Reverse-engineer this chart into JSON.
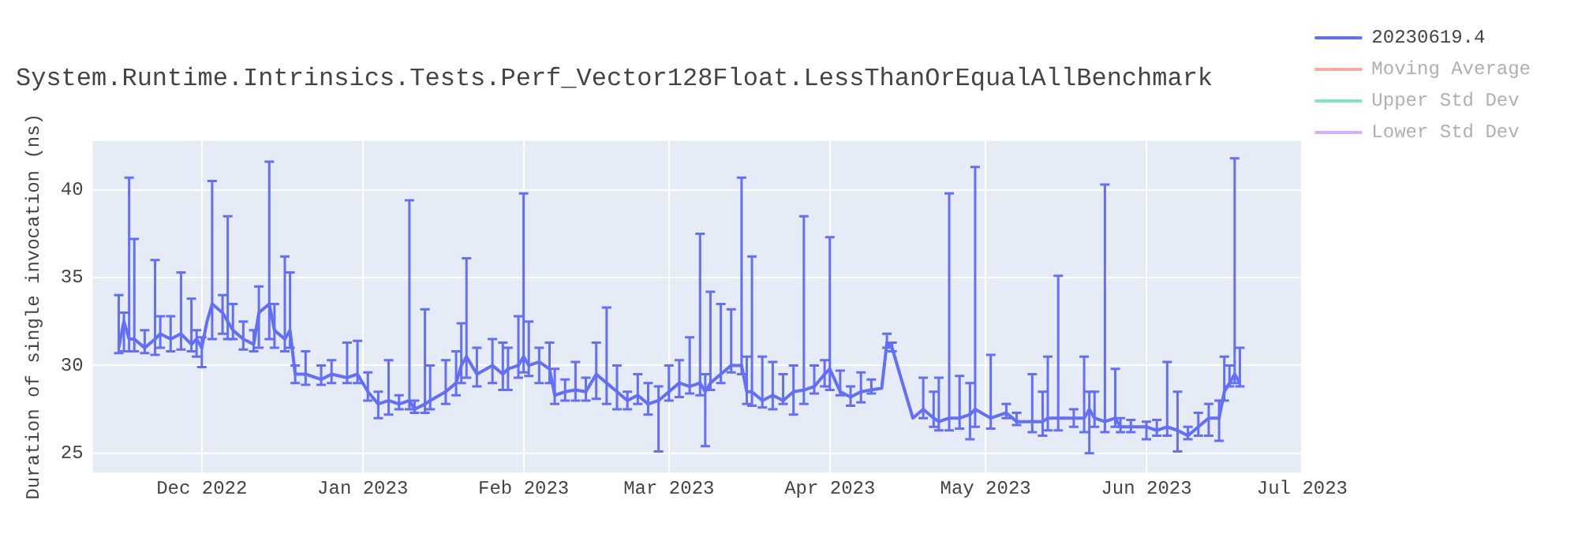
{
  "chart_data": {
    "type": "line",
    "title": "System.Runtime.Intrinsics.Tests.Perf_Vector128Float.LessThanOrEqualAllBenchmark",
    "ylabel": "Duration of single invocation (ns)",
    "x": [
      "2022-11-15",
      "2022-11-16",
      "2022-11-17",
      "2022-11-18",
      "2022-11-20",
      "2022-11-22",
      "2022-11-23",
      "2022-11-25",
      "2022-11-27",
      "2022-11-29",
      "2022-11-30",
      "2022-12-01",
      "2022-12-02",
      "2022-12-03",
      "2022-12-05",
      "2022-12-06",
      "2022-12-07",
      "2022-12-09",
      "2022-12-11",
      "2022-12-12",
      "2022-12-14",
      "2022-12-15",
      "2022-12-17",
      "2022-12-18",
      "2022-12-19",
      "2022-12-21",
      "2022-12-24",
      "2022-12-26",
      "2022-12-29",
      "2022-12-31",
      "2023-01-02",
      "2023-01-04",
      "2023-01-06",
      "2023-01-08",
      "2023-01-10",
      "2023-01-11",
      "2023-01-13",
      "2023-01-14",
      "2023-01-17",
      "2023-01-19",
      "2023-01-20",
      "2023-01-21",
      "2023-01-23",
      "2023-01-26",
      "2023-01-28",
      "2023-01-29",
      "2023-01-31",
      "2023-02-01",
      "2023-02-02",
      "2023-02-04",
      "2023-02-06",
      "2023-02-07",
      "2023-02-09",
      "2023-02-11",
      "2023-02-13",
      "2023-02-15",
      "2023-02-17",
      "2023-02-19",
      "2023-02-21",
      "2023-02-23",
      "2023-02-25",
      "2023-02-27",
      "2023-03-01",
      "2023-03-03",
      "2023-03-05",
      "2023-03-07",
      "2023-03-08",
      "2023-03-09",
      "2023-03-11",
      "2023-03-13",
      "2023-03-15",
      "2023-03-16",
      "2023-03-17",
      "2023-03-19",
      "2023-03-21",
      "2023-03-23",
      "2023-03-25",
      "2023-03-27",
      "2023-03-29",
      "2023-03-31",
      "2023-04-01",
      "2023-04-03",
      "2023-04-05",
      "2023-04-07",
      "2023-04-09",
      "2023-04-11",
      "2023-04-12",
      "2023-04-13",
      "2023-04-17",
      "2023-04-19",
      "2023-04-21",
      "2023-04-22",
      "2023-04-24",
      "2023-04-26",
      "2023-04-28",
      "2023-04-29",
      "2023-05-02",
      "2023-05-05",
      "2023-05-07",
      "2023-05-10",
      "2023-05-12",
      "2023-05-13",
      "2023-05-15",
      "2023-05-18",
      "2023-05-20",
      "2023-05-21",
      "2023-05-22",
      "2023-05-24",
      "2023-05-26",
      "2023-05-27",
      "2023-05-29",
      "2023-06-01",
      "2023-06-03",
      "2023-06-05",
      "2023-06-07",
      "2023-06-09",
      "2023-06-11",
      "2023-06-13",
      "2023-06-15",
      "2023-06-16",
      "2023-06-17",
      "2023-06-18",
      "2023-06-19"
    ],
    "series": [
      {
        "name": "20230619.4",
        "color": "#636efa",
        "values": [
          31.0,
          32.5,
          31.5,
          31.5,
          31.0,
          31.5,
          31.8,
          31.5,
          31.8,
          31.2,
          31.5,
          31.0,
          32.5,
          33.5,
          33.0,
          32.5,
          32.0,
          31.5,
          31.2,
          33.0,
          33.5,
          32.0,
          31.5,
          32.0,
          29.5,
          29.5,
          29.2,
          29.5,
          29.3,
          29.5,
          28.5,
          27.8,
          28.0,
          27.8,
          28.0,
          27.5,
          27.8,
          28.0,
          28.5,
          29.0,
          30.0,
          30.5,
          29.5,
          30.0,
          29.5,
          29.8,
          30.0,
          30.5,
          30.0,
          30.2,
          29.8,
          28.3,
          28.5,
          28.6,
          28.5,
          29.5,
          29.0,
          28.5,
          28.0,
          28.3,
          27.8,
          28.0,
          28.5,
          29.0,
          28.8,
          29.0,
          28.5,
          29.0,
          29.5,
          30.0,
          30.0,
          28.5,
          28.5,
          28.0,
          28.3,
          28.0,
          28.5,
          28.6,
          28.8,
          29.5,
          29.8,
          28.5,
          28.2,
          28.5,
          28.6,
          28.7,
          31.3,
          31.0,
          27.0,
          27.5,
          27.0,
          26.8,
          27.0,
          27.0,
          27.2,
          27.5,
          27.0,
          27.3,
          26.8,
          26.8,
          26.8,
          27.0,
          27.0,
          27.0,
          27.0,
          27.5,
          27.0,
          26.8,
          27.0,
          26.5,
          26.5,
          26.5,
          26.3,
          26.5,
          26.3,
          26.0,
          26.5,
          27.0,
          27.0,
          28.5,
          29.0,
          29.5,
          29.0
        ],
        "errors": [
          [
            30.7,
            34.0
          ],
          [
            30.8,
            33.0
          ],
          [
            30.8,
            40.7
          ],
          [
            30.8,
            37.2
          ],
          [
            30.7,
            32.0
          ],
          [
            30.6,
            36.0
          ],
          [
            31.0,
            32.8
          ],
          [
            30.8,
            32.8
          ],
          [
            30.9,
            35.3
          ],
          [
            30.8,
            33.8
          ],
          [
            30.5,
            32.0
          ],
          [
            29.9,
            31.6
          ],
          null,
          [
            31.5,
            40.5
          ],
          [
            31.8,
            34.0
          ],
          [
            31.5,
            38.5
          ],
          [
            31.5,
            33.5
          ],
          [
            30.9,
            32.5
          ],
          [
            30.8,
            32.0
          ],
          [
            31.0,
            34.5
          ],
          [
            31.5,
            41.6
          ],
          [
            31.0,
            33.5
          ],
          [
            30.8,
            36.2
          ],
          [
            31.0,
            35.3
          ],
          [
            29.0,
            30.0
          ],
          [
            28.9,
            30.8
          ],
          [
            28.9,
            30.0
          ],
          [
            29.0,
            30.3
          ],
          [
            29.0,
            31.3
          ],
          [
            29.0,
            31.4
          ],
          [
            28.0,
            29.6
          ],
          [
            27.0,
            28.5
          ],
          [
            27.2,
            30.3
          ],
          [
            27.5,
            28.3
          ],
          [
            27.5,
            39.4
          ],
          [
            27.3,
            28.0
          ],
          [
            27.3,
            33.2
          ],
          [
            27.5,
            30.0
          ],
          [
            27.8,
            30.3
          ],
          [
            28.3,
            30.8
          ],
          [
            29.0,
            32.4
          ],
          [
            29.3,
            36.1
          ],
          [
            28.8,
            31.0
          ],
          [
            29.0,
            31.5
          ],
          [
            28.6,
            31.3
          ],
          [
            28.6,
            31.0
          ],
          [
            29.3,
            32.8
          ],
          [
            29.6,
            39.8
          ],
          [
            29.4,
            32.5
          ],
          [
            29.0,
            31.0
          ],
          [
            29.0,
            31.3
          ],
          [
            27.8,
            29.8
          ],
          [
            28.0,
            29.2
          ],
          [
            28.0,
            30.2
          ],
          [
            28.0,
            29.3
          ],
          [
            28.1,
            31.3
          ],
          [
            27.8,
            33.3
          ],
          [
            27.5,
            30.0
          ],
          [
            27.5,
            28.5
          ],
          [
            27.8,
            29.5
          ],
          [
            27.2,
            29.0
          ],
          [
            25.1,
            28.8
          ],
          [
            28.0,
            30.0
          ],
          [
            28.2,
            30.3
          ],
          [
            28.4,
            31.6
          ],
          [
            28.3,
            37.5
          ],
          [
            25.4,
            29.5
          ],
          [
            28.6,
            34.2
          ],
          [
            29.0,
            33.5
          ],
          [
            29.6,
            33.2
          ],
          [
            29.5,
            40.7
          ],
          [
            27.8,
            30.5
          ],
          [
            27.7,
            36.2
          ],
          [
            27.6,
            30.5
          ],
          [
            27.5,
            30.2
          ],
          [
            27.8,
            29.5
          ],
          [
            27.2,
            30.0
          ],
          [
            27.8,
            38.5
          ],
          [
            28.4,
            30.0
          ],
          [
            28.8,
            30.3
          ],
          [
            28.6,
            37.3
          ],
          [
            28.3,
            29.7
          ],
          [
            27.7,
            28.8
          ],
          [
            27.9,
            29.6
          ],
          [
            28.4,
            29.2
          ],
          null,
          [
            31.0,
            31.8
          ],
          [
            30.8,
            31.3
          ],
          null,
          [
            27.0,
            29.3
          ],
          [
            26.5,
            28.5
          ],
          [
            26.3,
            29.3
          ],
          [
            26.3,
            39.8
          ],
          [
            26.4,
            29.4
          ],
          [
            25.8,
            29.0
          ],
          [
            26.5,
            41.3
          ],
          [
            26.4,
            30.6
          ],
          [
            27.0,
            27.8
          ],
          [
            26.6,
            27.3
          ],
          [
            26.2,
            29.5
          ],
          [
            26.0,
            28.5
          ],
          [
            26.3,
            30.5
          ],
          [
            26.3,
            35.1
          ],
          [
            26.5,
            27.5
          ],
          [
            26.2,
            30.5
          ],
          [
            25.0,
            28.5
          ],
          [
            26.5,
            28.5
          ],
          [
            26.2,
            40.3
          ],
          [
            26.5,
            29.8
          ],
          [
            26.2,
            27.0
          ],
          [
            26.2,
            26.9
          ],
          [
            25.8,
            26.8
          ],
          [
            26.0,
            26.9
          ],
          [
            26.0,
            30.2
          ],
          [
            25.1,
            28.5
          ],
          [
            25.8,
            26.5
          ],
          [
            26.0,
            27.3
          ],
          [
            26.0,
            27.8
          ],
          [
            25.7,
            28.0
          ],
          [
            28.0,
            30.5
          ],
          [
            28.8,
            30.0
          ],
          [
            29.0,
            41.8
          ],
          [
            28.8,
            31.0
          ]
        ]
      },
      {
        "name": "Moving Average",
        "color": "#ef553b",
        "values": [
          null,
          null,
          null,
          null,
          null,
          null,
          null,
          null,
          null,
          null,
          null,
          null,
          null,
          null,
          null,
          null,
          null,
          null,
          null,
          null,
          null,
          null,
          null,
          null,
          null,
          null,
          null,
          null,
          null,
          null,
          null,
          null,
          null,
          null,
          null,
          null,
          null,
          null,
          null,
          null,
          null,
          null,
          null,
          null,
          null,
          null,
          null,
          null,
          null,
          null,
          null,
          null,
          null,
          null,
          null,
          null,
          null,
          null,
          null,
          null,
          null,
          null,
          null,
          null,
          null,
          null,
          null,
          null,
          null,
          null,
          null,
          null,
          null,
          null,
          null,
          null,
          null,
          null,
          null,
          null,
          null,
          null,
          null,
          null,
          null,
          null,
          null,
          null,
          null,
          null,
          null,
          null,
          null,
          null,
          null,
          null,
          null,
          null,
          null,
          null,
          null,
          null,
          null,
          null,
          null,
          null,
          null,
          null,
          null,
          null,
          null,
          null,
          null,
          null,
          null,
          null,
          null,
          null,
          null,
          null,
          null,
          null,
          null
        ]
      },
      {
        "name": "Upper Std Dev",
        "color": "#00cc96",
        "values": [
          null,
          null,
          null,
          null,
          null,
          null,
          null,
          null,
          null,
          null,
          null,
          null,
          null,
          null,
          null,
          null,
          null,
          null,
          null,
          null,
          null,
          null,
          null,
          null,
          null,
          null,
          null,
          null,
          null,
          null,
          null,
          null,
          null,
          null,
          null,
          null,
          null,
          null,
          null,
          null,
          null,
          null,
          null,
          null,
          null,
          null,
          null,
          null,
          null,
          null,
          null,
          null,
          null,
          null,
          null,
          null,
          null,
          null,
          null,
          null,
          null,
          null,
          null,
          null,
          null,
          null,
          null,
          null,
          null,
          null,
          null,
          null,
          null,
          null,
          null,
          null,
          null,
          null,
          null,
          null,
          null,
          null,
          null,
          null,
          null,
          null,
          null,
          null,
          null,
          null,
          null,
          null,
          null,
          null,
          null,
          null,
          null,
          null,
          null,
          null,
          null,
          null,
          null,
          null,
          null,
          null,
          null,
          null,
          null,
          null,
          null,
          null,
          null,
          null,
          null,
          null,
          null,
          null,
          null,
          null,
          null,
          null,
          null
        ]
      },
      {
        "name": "Lower Std Dev",
        "color": "#ab63fa",
        "values": [
          null,
          null,
          null,
          null,
          null,
          null,
          null,
          null,
          null,
          null,
          null,
          null,
          null,
          null,
          null,
          null,
          null,
          null,
          null,
          null,
          null,
          null,
          null,
          null,
          null,
          null,
          null,
          null,
          null,
          null,
          null,
          null,
          null,
          null,
          null,
          null,
          null,
          null,
          null,
          null,
          null,
          null,
          null,
          null,
          null,
          null,
          null,
          null,
          null,
          null,
          null,
          null,
          null,
          null,
          null,
          null,
          null,
          null,
          null,
          null,
          null,
          null,
          null,
          null,
          null,
          null,
          null,
          null,
          null,
          null,
          null,
          null,
          null,
          null,
          null,
          null,
          null,
          null,
          null,
          null,
          null,
          null,
          null,
          null,
          null,
          null,
          null,
          null,
          null,
          null,
          null,
          null,
          null,
          null,
          null,
          null,
          null,
          null,
          null,
          null,
          null,
          null,
          null,
          null,
          null,
          null,
          null,
          null,
          null,
          null,
          null,
          null,
          null,
          null,
          null,
          null,
          null,
          null,
          null,
          null,
          null,
          null,
          null
        ]
      }
    ],
    "xlim": [
      "2022-11-10",
      "2023-07-01"
    ],
    "xticks": [
      {
        "value": "2022-12-01",
        "label": "Dec 2022"
      },
      {
        "value": "2023-01-01",
        "label": "Jan 2023"
      },
      {
        "value": "2023-02-01",
        "label": "Feb 2023"
      },
      {
        "value": "2023-03-01",
        "label": "Mar 2023"
      },
      {
        "value": "2023-04-01",
        "label": "Apr 2023"
      },
      {
        "value": "2023-05-01",
        "label": "May 2023"
      },
      {
        "value": "2023-06-01",
        "label": "Jun 2023"
      },
      {
        "value": "2023-07-01",
        "label": "Jul 2023"
      }
    ],
    "ylim": [
      23.9,
      42.8
    ],
    "yticks": [
      25,
      30,
      35,
      40
    ],
    "grid": true,
    "legend": "top right",
    "marker": "none",
    "line_style": "solid"
  }
}
